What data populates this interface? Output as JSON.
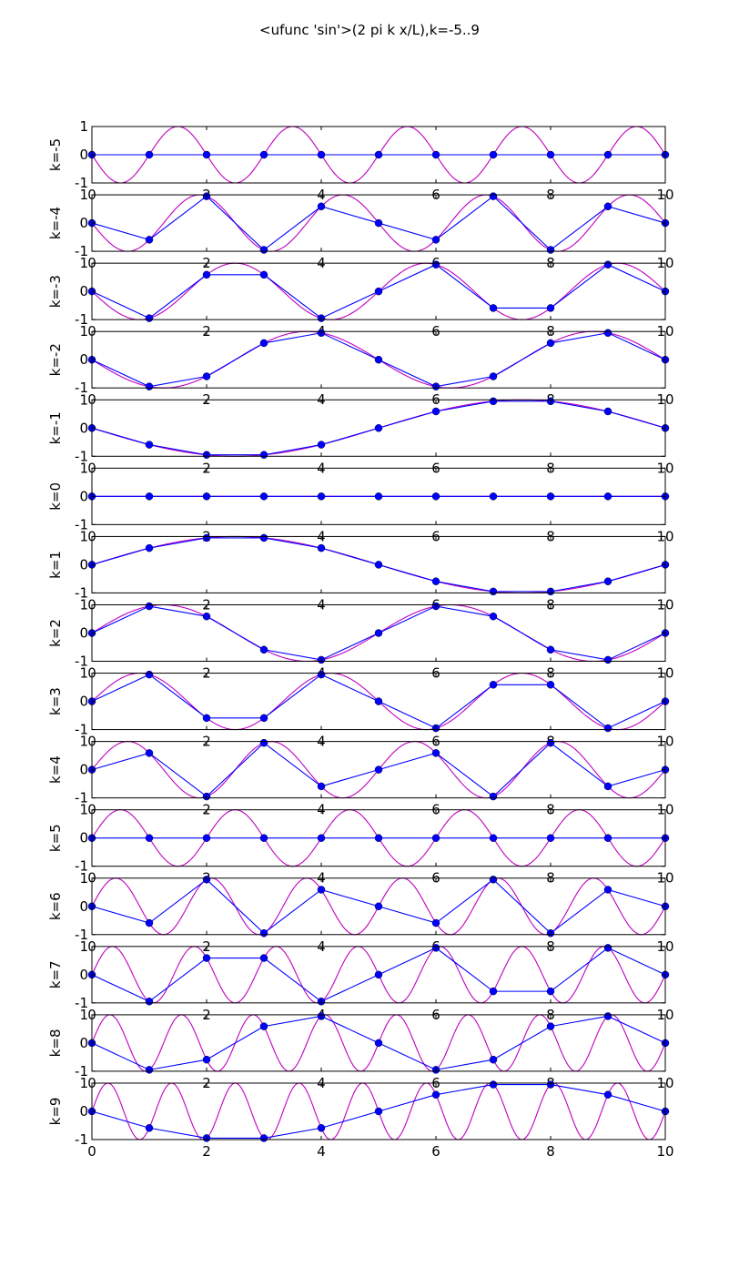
{
  "chart_data": {
    "type": "line",
    "title": "<ufunc 'sin'>(2 pi k x/L),k=-5..9",
    "xlim": [
      0,
      10
    ],
    "ylim": [
      -1,
      1
    ],
    "x_ticks": [
      "0",
      "2",
      "4",
      "6",
      "8",
      "10"
    ],
    "y_ticks": [
      "-1",
      "0",
      "1"
    ],
    "continuous_color": "#bf00bf",
    "sample_color": "#0000ff",
    "sample_x": [
      0,
      1,
      2,
      3,
      4,
      5,
      6,
      7,
      8,
      9,
      10
    ],
    "series": [
      {
        "name": "k=-5",
        "k": -5,
        "samples": [
          0,
          0,
          0,
          0,
          0,
          0,
          0,
          0,
          0,
          0,
          0
        ]
      },
      {
        "name": "k=-4",
        "k": -4,
        "samples": [
          0,
          -0.59,
          0.95,
          -0.95,
          0.59,
          0,
          -0.59,
          0.95,
          -0.95,
          0.59,
          0
        ]
      },
      {
        "name": "k=-3",
        "k": -3,
        "samples": [
          0,
          -0.95,
          0.59,
          0.59,
          -0.95,
          0,
          0.95,
          -0.59,
          -0.59,
          0.95,
          0
        ]
      },
      {
        "name": "k=-2",
        "k": -2,
        "samples": [
          0,
          -0.95,
          -0.59,
          0.59,
          0.95,
          0,
          -0.95,
          -0.59,
          0.59,
          0.95,
          0
        ]
      },
      {
        "name": "k=-1",
        "k": -1,
        "samples": [
          0,
          -0.59,
          -0.95,
          -0.95,
          -0.59,
          0,
          0.59,
          0.95,
          0.95,
          0.59,
          0
        ]
      },
      {
        "name": "k=0",
        "k": 0,
        "samples": [
          0,
          0,
          0,
          0,
          0,
          0,
          0,
          0,
          0,
          0,
          0
        ]
      },
      {
        "name": "k=1",
        "k": 1,
        "samples": [
          0,
          0.59,
          0.95,
          0.95,
          0.59,
          0,
          -0.59,
          -0.95,
          -0.95,
          -0.59,
          0
        ]
      },
      {
        "name": "k=2",
        "k": 2,
        "samples": [
          0,
          0.95,
          0.59,
          -0.59,
          -0.95,
          0,
          0.95,
          0.59,
          -0.59,
          -0.95,
          0
        ]
      },
      {
        "name": "k=3",
        "k": 3,
        "samples": [
          0,
          0.95,
          -0.59,
          -0.59,
          0.95,
          0,
          -0.95,
          0.59,
          0.59,
          -0.95,
          0
        ]
      },
      {
        "name": "k=4",
        "k": 4,
        "samples": [
          0,
          0.59,
          -0.95,
          0.95,
          -0.59,
          0,
          0.59,
          -0.95,
          0.95,
          -0.59,
          0
        ]
      },
      {
        "name": "k=5",
        "k": 5,
        "samples": [
          0,
          0,
          0,
          0,
          0,
          0,
          0,
          0,
          0,
          0,
          0
        ]
      },
      {
        "name": "k=6",
        "k": 6,
        "samples": [
          0,
          -0.59,
          0.95,
          -0.95,
          0.59,
          0,
          -0.59,
          0.95,
          -0.95,
          0.59,
          0
        ]
      },
      {
        "name": "k=7",
        "k": 7,
        "samples": [
          0,
          -0.95,
          0.59,
          0.59,
          -0.95,
          0,
          0.95,
          -0.59,
          -0.59,
          0.95,
          0
        ]
      },
      {
        "name": "k=8",
        "k": 8,
        "samples": [
          0,
          -0.95,
          -0.59,
          0.59,
          0.95,
          0,
          -0.95,
          -0.59,
          0.59,
          0.95,
          0
        ]
      },
      {
        "name": "k=9",
        "k": 9,
        "samples": [
          0,
          -0.59,
          -0.95,
          -0.95,
          -0.59,
          0,
          0.59,
          0.95,
          0.95,
          0.59,
          0
        ]
      }
    ]
  }
}
